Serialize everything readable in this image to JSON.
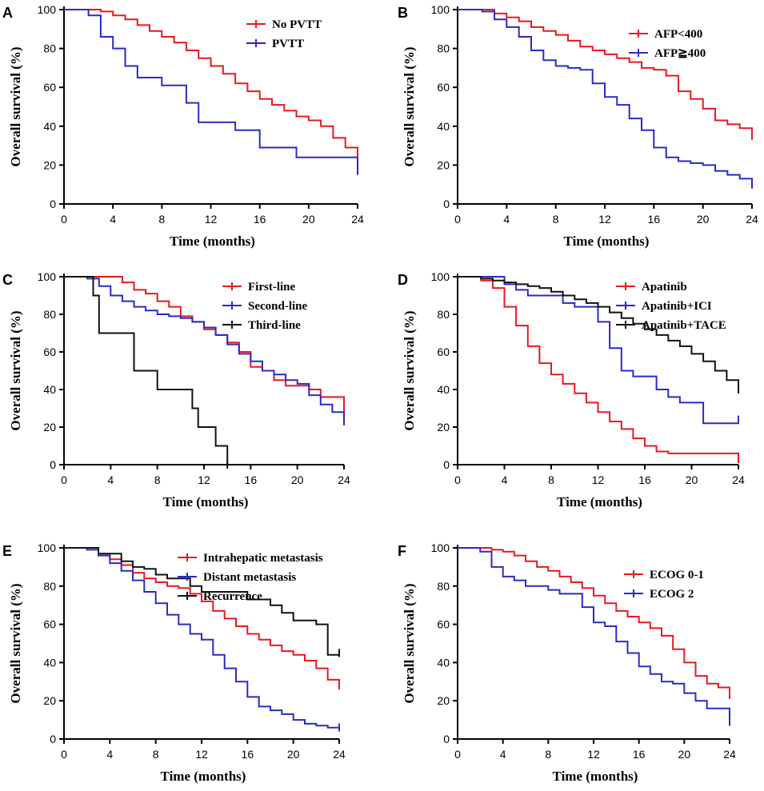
{
  "figure": {
    "panel_count": 6
  },
  "chart_data": [
    {
      "panel": "A",
      "type": "line",
      "step": true,
      "xlabel": "Time (months)",
      "ylabel": "Overall survival (%)",
      "xlim": [
        0,
        24
      ],
      "ylim": [
        0,
        100
      ],
      "xticks": [
        0,
        4,
        8,
        12,
        16,
        20,
        24
      ],
      "yticks": [
        0,
        20,
        40,
        60,
        80,
        100
      ],
      "legend_position": "top-right",
      "series": [
        {
          "name": "No PVTT",
          "color": "#e8191e",
          "x": [
            0,
            2,
            3,
            4,
            5,
            6,
            7,
            8,
            9,
            10,
            11,
            12,
            13,
            14,
            15,
            16,
            17,
            18,
            19,
            20,
            21,
            22,
            23,
            24
          ],
          "y": [
            100,
            100,
            99,
            97,
            95,
            92,
            89,
            86,
            83,
            79,
            75,
            71,
            67,
            62,
            58,
            54,
            51,
            48,
            45,
            43,
            40,
            34,
            29,
            26
          ]
        },
        {
          "name": "PVTT",
          "color": "#2a2ac8",
          "x": [
            0,
            2,
            3,
            4,
            5,
            6,
            8,
            9,
            10,
            11,
            12,
            13,
            14,
            15,
            16,
            17,
            18,
            19,
            20,
            21,
            22,
            23,
            24
          ],
          "y": [
            100,
            97,
            86,
            80,
            71,
            65,
            61,
            61,
            52,
            42,
            42,
            42,
            38,
            38,
            29,
            29,
            29,
            24,
            24,
            24,
            24,
            24,
            17
          ]
        }
      ]
    },
    {
      "panel": "B",
      "type": "line",
      "step": true,
      "xlabel": "Time (months)",
      "ylabel": "Overall survival (%)",
      "xlim": [
        0,
        24
      ],
      "ylim": [
        0,
        100
      ],
      "xticks": [
        0,
        4,
        8,
        12,
        16,
        20,
        24
      ],
      "yticks": [
        0,
        20,
        40,
        60,
        80,
        100
      ],
      "legend_position": "top-right",
      "series": [
        {
          "name": "AFP<400",
          "color": "#e8191e",
          "x": [
            0,
            2,
            3,
            4,
            5,
            6,
            7,
            8,
            9,
            10,
            11,
            12,
            13,
            14,
            15,
            16,
            17,
            18,
            19,
            20,
            21,
            22,
            23,
            24
          ],
          "y": [
            100,
            100,
            98,
            96,
            94,
            91,
            89,
            87,
            84,
            81,
            79,
            77,
            75,
            73,
            70,
            69,
            66,
            58,
            54,
            49,
            43,
            41,
            39,
            35
          ]
        },
        {
          "name": "AFP≧400",
          "color": "#2a2ac8",
          "x": [
            0,
            2,
            3,
            4,
            5,
            6,
            7,
            8,
            9,
            10,
            11,
            12,
            13,
            14,
            15,
            16,
            17,
            18,
            19,
            20,
            21,
            22,
            23,
            24
          ],
          "y": [
            100,
            99,
            95,
            91,
            86,
            79,
            74,
            71,
            70,
            69,
            62,
            55,
            51,
            44,
            38,
            29,
            24,
            22,
            21,
            20,
            17,
            15,
            13,
            10
          ]
        }
      ]
    },
    {
      "panel": "C",
      "type": "line",
      "step": true,
      "xlabel": "Time (months)",
      "ylabel": "Overall survival (%)",
      "xlim": [
        0,
        24
      ],
      "ylim": [
        0,
        100
      ],
      "xticks": [
        0,
        4,
        8,
        12,
        16,
        20,
        24
      ],
      "yticks": [
        0,
        20,
        40,
        60,
        80,
        100
      ],
      "legend_position": "top-right",
      "series": [
        {
          "name": "First-line",
          "color": "#e8191e",
          "x": [
            0,
            4,
            5,
            6,
            7,
            8,
            9,
            10,
            11,
            12,
            13,
            14,
            15,
            16,
            17,
            18,
            19,
            20,
            21,
            22,
            23,
            24
          ],
          "y": [
            100,
            100,
            97,
            93,
            91,
            87,
            84,
            79,
            76,
            72,
            69,
            65,
            60,
            52,
            50,
            45,
            42,
            42,
            40,
            36,
            36,
            30
          ]
        },
        {
          "name": "Second-line",
          "color": "#2a2ac8",
          "x": [
            0,
            2,
            3,
            4,
            5,
            6,
            7,
            8,
            9,
            10,
            11,
            12,
            13,
            14,
            15,
            16,
            17,
            18,
            19,
            20,
            21,
            22,
            23,
            24
          ],
          "y": [
            100,
            99,
            95,
            90,
            87,
            84,
            82,
            80,
            79,
            78,
            76,
            73,
            69,
            64,
            59,
            55,
            50,
            48,
            45,
            43,
            37,
            32,
            28,
            23
          ]
        },
        {
          "name": "Third-line",
          "color": "#111111",
          "x": [
            0,
            2.5,
            3,
            4,
            6,
            8,
            11,
            11.5,
            13,
            14
          ],
          "y": [
            100,
            90,
            70,
            70,
            50,
            40,
            30,
            20,
            10,
            0
          ]
        }
      ]
    },
    {
      "panel": "D",
      "type": "line",
      "step": true,
      "xlabel": "Time (months)",
      "ylabel": "Overall survival (%)",
      "xlim": [
        0,
        24
      ],
      "ylim": [
        0,
        100
      ],
      "xticks": [
        0,
        4,
        8,
        12,
        16,
        20,
        24
      ],
      "yticks": [
        0,
        20,
        40,
        60,
        80,
        100
      ],
      "legend_position": "top-right",
      "series": [
        {
          "name": "Apatinib",
          "color": "#e8191e",
          "x": [
            0,
            2,
            3,
            4,
            5,
            6,
            7,
            8,
            9,
            10,
            11,
            12,
            13,
            14,
            15,
            16,
            17,
            18,
            19,
            20,
            21,
            22,
            23,
            24
          ],
          "y": [
            100,
            98,
            94,
            84,
            74,
            63,
            54,
            48,
            43,
            38,
            33,
            28,
            23,
            19,
            14,
            10,
            7,
            6,
            6,
            6,
            6,
            6,
            6,
            3
          ]
        },
        {
          "name": "Apatinib+ICI",
          "color": "#2a2ac8",
          "x": [
            0,
            4,
            5,
            6,
            7,
            8,
            9,
            10,
            11,
            12,
            13,
            14,
            15,
            16,
            17,
            18,
            19,
            20,
            21,
            22,
            23,
            24
          ],
          "y": [
            100,
            96,
            93,
            90,
            90,
            90,
            86,
            84,
            84,
            76,
            62,
            50,
            47,
            47,
            40,
            36,
            33,
            33,
            22,
            22,
            22,
            24
          ]
        },
        {
          "name": "Apatinib+TACE",
          "color": "#111111",
          "x": [
            0,
            2,
            3,
            4,
            5,
            6,
            7,
            8,
            9,
            10,
            11,
            12,
            13,
            14,
            15,
            16,
            17,
            18,
            19,
            20,
            21,
            22,
            23,
            24
          ],
          "y": [
            100,
            99,
            98,
            97,
            96,
            95,
            94,
            92,
            90,
            88,
            86,
            84,
            81,
            78,
            75,
            72,
            69,
            66,
            63,
            59,
            55,
            50,
            45,
            40
          ]
        }
      ]
    },
    {
      "panel": "E",
      "type": "line",
      "step": true,
      "xlabel": "Time (months)",
      "ylabel": "Overall survival (%)",
      "xlim": [
        0,
        24
      ],
      "ylim": [
        0,
        100
      ],
      "xticks": [
        0,
        4,
        8,
        12,
        16,
        20,
        24
      ],
      "yticks": [
        0,
        20,
        40,
        60,
        80,
        100
      ],
      "legend_position": "top-right",
      "series": [
        {
          "name": "Intrahepatic metastasis",
          "color": "#e8191e",
          "x": [
            0,
            2,
            3,
            4,
            5,
            6,
            7,
            8,
            9,
            10,
            11,
            12,
            13,
            14,
            15,
            16,
            17,
            18,
            19,
            20,
            21,
            22,
            23,
            24
          ],
          "y": [
            100,
            100,
            97,
            94,
            91,
            87,
            84,
            82,
            80,
            79,
            76,
            72,
            67,
            63,
            59,
            55,
            52,
            49,
            46,
            44,
            41,
            37,
            31,
            28
          ]
        },
        {
          "name": "Distant metastasis",
          "color": "#2a2ac8",
          "x": [
            0,
            2,
            3,
            4,
            5,
            6,
            7,
            8,
            9,
            10,
            11,
            12,
            13,
            14,
            15,
            16,
            17,
            18,
            19,
            20,
            21,
            22,
            23,
            24
          ],
          "y": [
            100,
            99,
            96,
            92,
            88,
            83,
            77,
            71,
            65,
            60,
            55,
            52,
            44,
            37,
            30,
            22,
            17,
            15,
            13,
            10,
            8,
            7,
            6,
            6
          ]
        },
        {
          "name": "Recurrence",
          "color": "#111111",
          "x": [
            0,
            2,
            3,
            4,
            5,
            6,
            7,
            8,
            9,
            10,
            11,
            12,
            13,
            14,
            15,
            16,
            17,
            18,
            19,
            20,
            21,
            22,
            23,
            24
          ],
          "y": [
            100,
            100,
            97,
            97,
            93,
            90,
            89,
            86,
            84,
            84,
            80,
            77,
            77,
            77,
            77,
            73,
            73,
            70,
            66,
            62,
            62,
            60,
            44,
            45
          ]
        }
      ]
    },
    {
      "panel": "F",
      "type": "line",
      "step": true,
      "xlabel": "Time (months)",
      "ylabel": "Overall survival (%)",
      "xlim": [
        0,
        24
      ],
      "ylim": [
        0,
        100
      ],
      "xticks": [
        0,
        4,
        8,
        12,
        16,
        20,
        24
      ],
      "yticks": [
        0,
        20,
        40,
        60,
        80,
        100
      ],
      "legend_position": "top-right",
      "series": [
        {
          "name": "ECOG 0-1",
          "color": "#e8191e",
          "x": [
            0,
            2,
            3,
            4,
            5,
            6,
            7,
            8,
            9,
            10,
            11,
            12,
            13,
            14,
            15,
            16,
            17,
            18,
            19,
            20,
            21,
            22,
            23,
            24
          ],
          "y": [
            100,
            100,
            99,
            98,
            96,
            93,
            90,
            88,
            85,
            82,
            79,
            75,
            71,
            67,
            64,
            61,
            58,
            54,
            47,
            40,
            33,
            29,
            27,
            23
          ]
        },
        {
          "name": "ECOG 2",
          "color": "#2a2ac8",
          "x": [
            0,
            2,
            3,
            4,
            5,
            6,
            7,
            8,
            9,
            10,
            11,
            12,
            13,
            14,
            15,
            16,
            17,
            18,
            19,
            20,
            21,
            22,
            23,
            24
          ],
          "y": [
            100,
            98,
            90,
            85,
            83,
            80,
            80,
            78,
            76,
            76,
            69,
            61,
            59,
            51,
            45,
            38,
            34,
            30,
            29,
            24,
            20,
            16,
            16,
            9
          ]
        }
      ]
    }
  ]
}
